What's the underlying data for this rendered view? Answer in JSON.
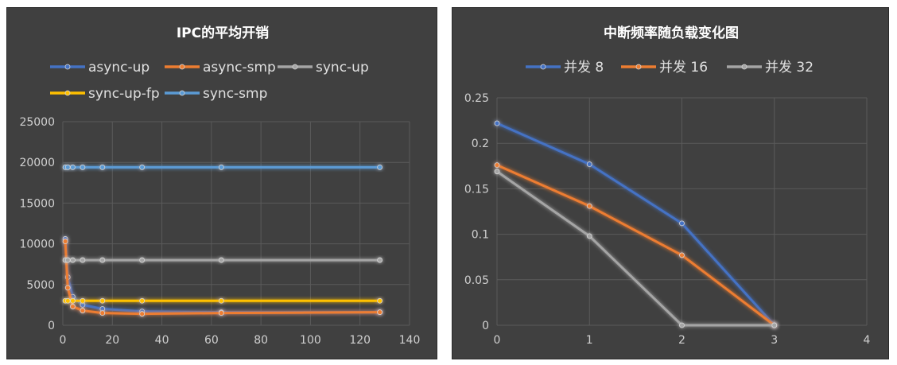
{
  "chart_data": [
    {
      "type": "scatter",
      "title": "IPC的平均开销",
      "xlim": [
        0,
        140
      ],
      "ylim": [
        0,
        25000
      ],
      "x_ticks": [
        0,
        20,
        40,
        60,
        80,
        100,
        120,
        140
      ],
      "y_ticks": [
        0,
        5000,
        10000,
        15000,
        20000,
        25000
      ],
      "x_tick_labels": [
        "0",
        "20",
        "40",
        "60",
        "80",
        "100",
        "120",
        "140"
      ],
      "y_tick_labels": [
        "0",
        "5000",
        "10000",
        "15000",
        "20000",
        "25000"
      ],
      "grid": true,
      "legend_position": "top",
      "series": [
        {
          "name": "async-up",
          "color": "#4472C4",
          "x": [
            1,
            2,
            4,
            8,
            16,
            32,
            64,
            128
          ],
          "y": [
            10600,
            5900,
            3500,
            2500,
            2000,
            1700,
            1600,
            1600
          ]
        },
        {
          "name": "async-smp",
          "color": "#ED7D31",
          "x": [
            1,
            2,
            4,
            8,
            16,
            32,
            64,
            128
          ],
          "y": [
            10300,
            4600,
            2300,
            1800,
            1500,
            1400,
            1500,
            1600
          ]
        },
        {
          "name": "sync-up",
          "color": "#A5A5A5",
          "x": [
            1,
            2,
            4,
            8,
            16,
            32,
            64,
            128
          ],
          "y": [
            8000,
            8000,
            8000,
            8000,
            8000,
            8000,
            8000,
            8000
          ]
        },
        {
          "name": "sync-up-fp",
          "color": "#FFC000",
          "x": [
            1,
            2,
            4,
            8,
            16,
            32,
            64,
            128
          ],
          "y": [
            3000,
            3000,
            3000,
            3000,
            3000,
            3000,
            3000,
            3000
          ]
        },
        {
          "name": "sync-smp",
          "color": "#5B9BD5",
          "x": [
            1,
            2,
            4,
            8,
            16,
            32,
            64,
            128
          ],
          "y": [
            19400,
            19400,
            19400,
            19400,
            19400,
            19400,
            19400,
            19400
          ]
        }
      ]
    },
    {
      "type": "scatter",
      "title": "中断频率随负载变化图",
      "xlim": [
        0,
        4
      ],
      "ylim": [
        0,
        0.25
      ],
      "x_ticks": [
        0,
        1,
        2,
        3,
        4
      ],
      "y_ticks": [
        0,
        0.05,
        0.1,
        0.15,
        0.2,
        0.25
      ],
      "x_tick_labels": [
        "0",
        "1",
        "2",
        "3",
        "4"
      ],
      "y_tick_labels": [
        "0",
        "0.05",
        "0.1",
        "0.15",
        "0.2",
        "0.25"
      ],
      "grid": true,
      "legend_position": "top",
      "series": [
        {
          "name": "并发 8",
          "color": "#4472C4",
          "x": [
            0,
            1,
            2,
            3
          ],
          "y": [
            0.222,
            0.177,
            0.112,
            0
          ]
        },
        {
          "name": "并发 16",
          "color": "#ED7D31",
          "x": [
            0,
            1,
            2,
            3
          ],
          "y": [
            0.176,
            0.131,
            0.077,
            0
          ]
        },
        {
          "name": "并发 32",
          "color": "#A5A5A5",
          "x": [
            0,
            1,
            2,
            3
          ],
          "y": [
            0.169,
            0.098,
            0,
            0
          ]
        }
      ]
    }
  ]
}
